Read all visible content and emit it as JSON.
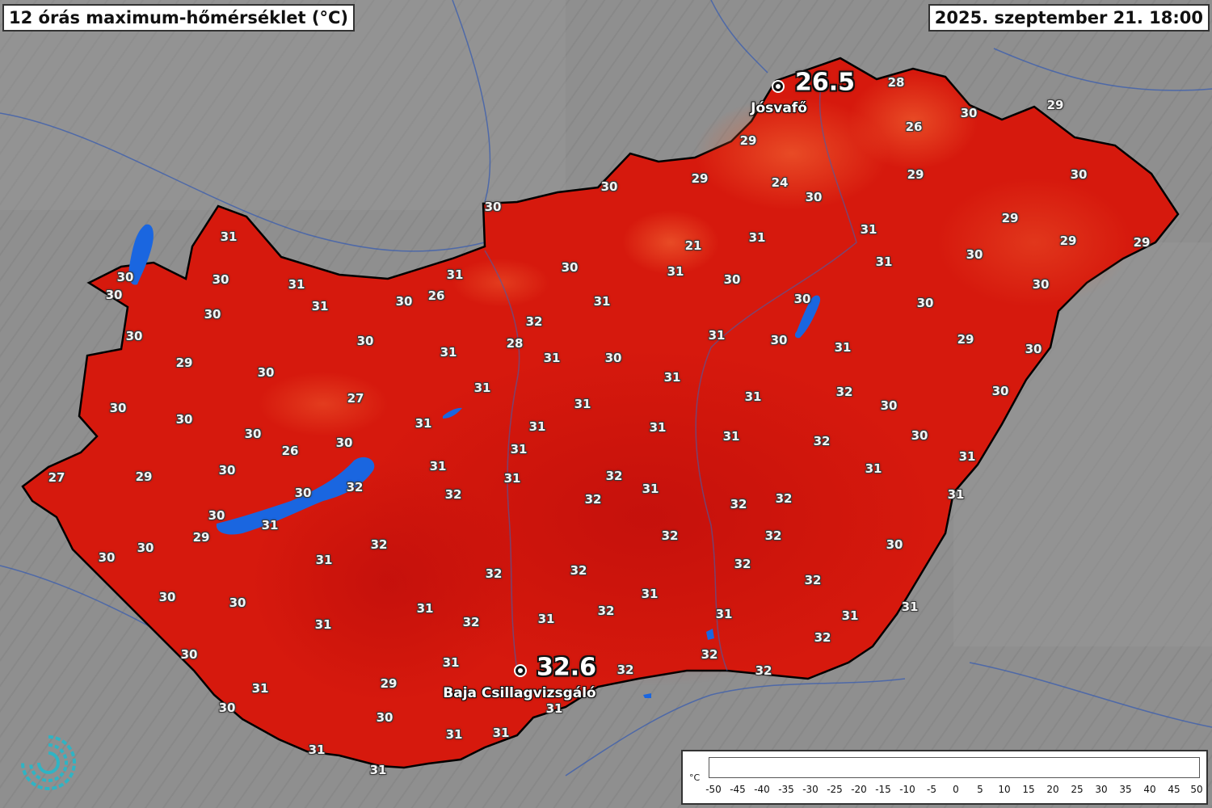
{
  "header": {
    "title": "12 órás maximum-hőmérséklet (°C)",
    "datetime": "2025. szeptember 21. 18:00"
  },
  "stations": [
    {
      "name": "Jósvafő",
      "value": "26.5"
    },
    {
      "name": "Baja Csillagvizsgáló",
      "value": "32.6"
    }
  ],
  "values": [
    "28",
    "30",
    "29",
    "26",
    "29",
    "29",
    "24",
    "30",
    "30",
    "29",
    "30",
    "21",
    "31",
    "31",
    "29",
    "29",
    "29",
    "30",
    "31",
    "31",
    "30",
    "30",
    "30",
    "31",
    "26",
    "30",
    "31",
    "30",
    "30",
    "31",
    "30",
    "32",
    "28",
    "31",
    "30",
    "29",
    "31",
    "29",
    "30",
    "31",
    "31",
    "32",
    "27",
    "31",
    "30",
    "30",
    "31",
    "30",
    "31",
    "31",
    "32",
    "30",
    "26",
    "30",
    "31",
    "30",
    "32",
    "31",
    "27",
    "29",
    "30",
    "31",
    "31",
    "32",
    "31",
    "32",
    "31",
    "32",
    "32",
    "30",
    "32",
    "31",
    "29",
    "31",
    "32",
    "32",
    "30",
    "30",
    "31",
    "32",
    "32",
    "31",
    "32",
    "30",
    "31",
    "30",
    "32",
    "32",
    "31",
    "31",
    "31",
    "32",
    "31",
    "31",
    "32",
    "31",
    "32",
    "32",
    "29",
    "31",
    "32",
    "30",
    "31",
    "31",
    "31",
    "31"
  ],
  "legend": {
    "unit": "°C",
    "ticks": [
      "-50",
      "-45",
      "-40",
      "-35",
      "-30",
      "-25",
      "-20",
      "-15",
      "-10",
      "-5",
      "0",
      "5",
      "10",
      "15",
      "20",
      "25",
      "30",
      "35",
      "40",
      "45",
      "50"
    ]
  },
  "colors": {
    "background_terrain": "#8c8c8c",
    "country_fill": "#d41a0e",
    "lakes": "#1a66e0",
    "rivers": "#3a5fbf"
  },
  "logo": {
    "icon": "meteorological-service-logo-icon"
  }
}
